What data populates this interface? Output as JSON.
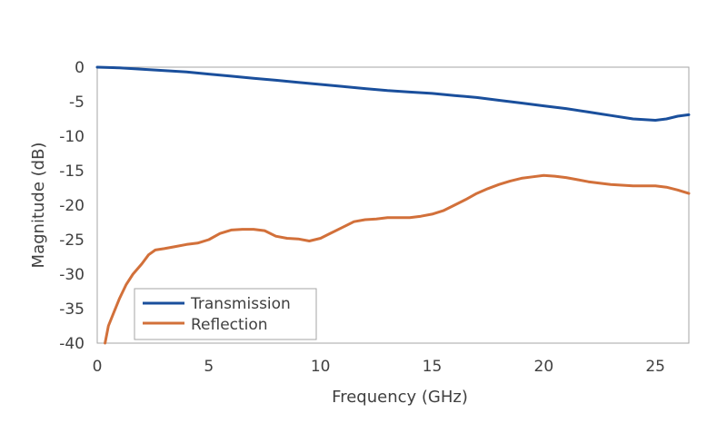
{
  "chart_data": {
    "type": "line",
    "title": "",
    "xlabel": "Frequency (GHz)",
    "ylabel": "Magnitude  (dB)",
    "xlim": [
      0,
      26.5
    ],
    "ylim": [
      -40,
      0
    ],
    "xticks": [
      0,
      5,
      10,
      15,
      20,
      25
    ],
    "yticks": [
      0,
      -5,
      -10,
      -15,
      -20,
      -25,
      -30,
      -35,
      -40
    ],
    "grid": false,
    "legend": "bottom-left",
    "series": [
      {
        "name": "Transmission",
        "color": "#1a4f9c",
        "x": [
          0,
          1,
          2,
          3,
          4,
          5,
          6,
          7,
          8,
          9,
          10,
          11,
          12,
          13,
          14,
          15,
          16,
          17,
          18,
          19,
          20,
          21,
          22,
          23,
          24,
          25,
          25.5,
          26,
          26.5
        ],
        "y": [
          0,
          -0.1,
          -0.3,
          -0.5,
          -0.7,
          -1.0,
          -1.3,
          -1.6,
          -1.9,
          -2.2,
          -2.5,
          -2.8,
          -3.1,
          -3.4,
          -3.6,
          -3.8,
          -4.1,
          -4.4,
          -4.8,
          -5.2,
          -5.6,
          -6.0,
          -6.5,
          -7.0,
          -7.5,
          -7.7,
          -7.5,
          -7.1,
          -6.9
        ]
      },
      {
        "name": "Reflection",
        "color": "#d2703a",
        "x": [
          0.35,
          0.5,
          0.75,
          1.0,
          1.3,
          1.6,
          2.0,
          2.3,
          2.6,
          3.0,
          3.5,
          4.0,
          4.5,
          5.0,
          5.5,
          6.0,
          6.5,
          7.0,
          7.5,
          8.0,
          8.5,
          9.0,
          9.5,
          10.0,
          10.5,
          11.0,
          11.5,
          12.0,
          12.5,
          13.0,
          13.5,
          14.0,
          14.5,
          15.0,
          15.5,
          16.0,
          16.5,
          17.0,
          17.5,
          18.0,
          18.5,
          19.0,
          19.5,
          20.0,
          20.5,
          21.0,
          21.5,
          22.0,
          22.5,
          23.0,
          23.5,
          24.0,
          24.5,
          25.0,
          25.5,
          26.0,
          26.5
        ],
        "y": [
          -40,
          -37.5,
          -35.5,
          -33.5,
          -31.5,
          -30.0,
          -28.5,
          -27.2,
          -26.5,
          -26.3,
          -26.0,
          -25.7,
          -25.5,
          -25.0,
          -24.1,
          -23.6,
          -23.5,
          -23.5,
          -23.7,
          -24.5,
          -24.8,
          -24.9,
          -25.2,
          -24.8,
          -24.0,
          -23.2,
          -22.4,
          -22.1,
          -22.0,
          -21.8,
          -21.8,
          -21.8,
          -21.6,
          -21.3,
          -20.8,
          -20.0,
          -19.2,
          -18.3,
          -17.6,
          -17.0,
          -16.5,
          -16.1,
          -15.9,
          -15.7,
          -15.8,
          -16.0,
          -16.3,
          -16.6,
          -16.8,
          -17.0,
          -17.1,
          -17.2,
          -17.2,
          -17.2,
          -17.4,
          -17.8,
          -18.3
        ]
      }
    ]
  }
}
